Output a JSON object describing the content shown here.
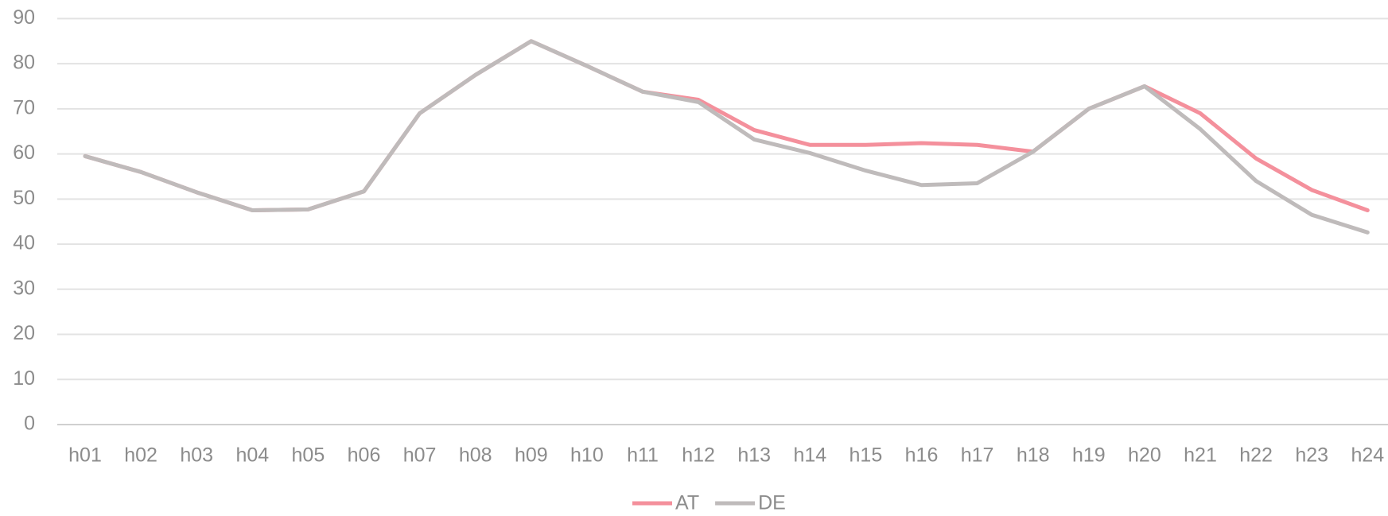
{
  "chart_data": {
    "type": "line",
    "categories": [
      "h01",
      "h02",
      "h03",
      "h04",
      "h05",
      "h06",
      "h07",
      "h08",
      "h09",
      "h10",
      "h11",
      "h12",
      "h13",
      "h14",
      "h15",
      "h16",
      "h17",
      "h18",
      "h19",
      "h20",
      "h21",
      "h22",
      "h23",
      "h24"
    ],
    "series": [
      {
        "name": "AT",
        "color": "#f4909c",
        "values": [
          59.5,
          56,
          51.5,
          47.5,
          47.7,
          51.7,
          69,
          77.5,
          85,
          79.5,
          73.8,
          72,
          65.3,
          62,
          62,
          62.4,
          62,
          60.5,
          70,
          75,
          69,
          59,
          52,
          47.5
        ]
      },
      {
        "name": "DE",
        "color": "#bfbbbb",
        "values": [
          59.5,
          56,
          51.5,
          47.5,
          47.7,
          51.7,
          69,
          77.5,
          85,
          79.5,
          73.8,
          71.5,
          63.2,
          60.2,
          56.3,
          53.1,
          53.5,
          60.5,
          70,
          75,
          65.5,
          54,
          46.5,
          42.6
        ]
      }
    ],
    "ylim": [
      0,
      90
    ],
    "yticks": [
      0,
      10,
      20,
      30,
      40,
      50,
      60,
      70,
      80,
      90
    ],
    "grid": true,
    "legend": "bottom"
  }
}
